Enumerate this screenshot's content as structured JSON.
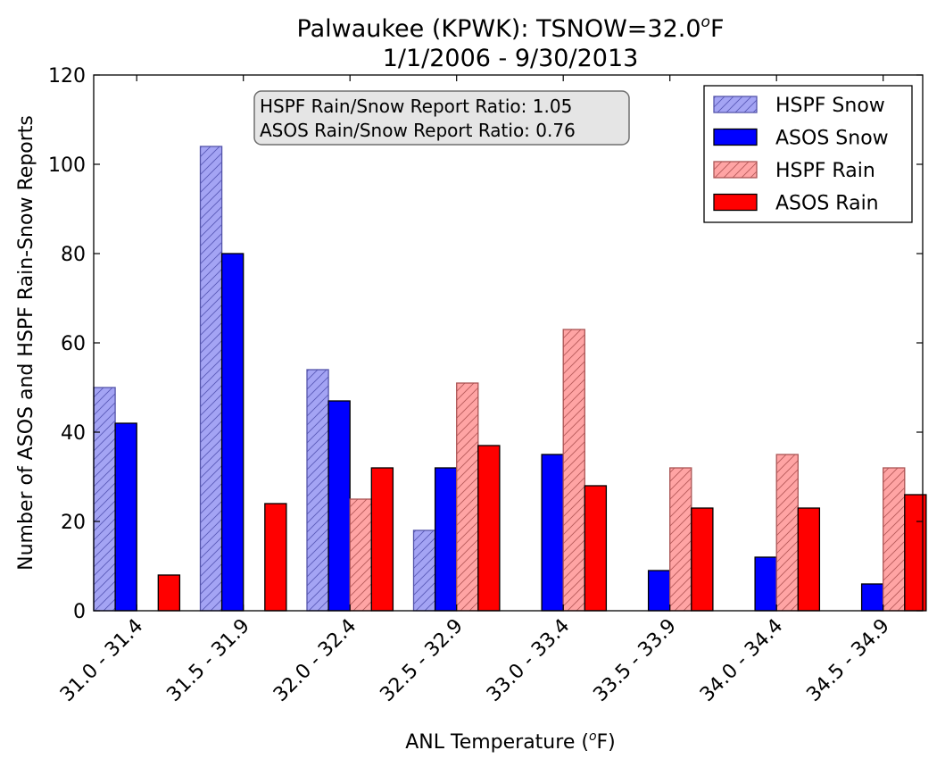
{
  "chart_data": {
    "type": "bar",
    "title_line1": "Palwaukee (KPWK): TSNOW=32.0",
    "title_degree": "o",
    "title_unit": "F",
    "title_line2": "1/1/2006 - 9/30/2013",
    "ylabel": "Number of ASOS and HSPF Rain-Snow Reports",
    "xlabel_prefix": "ANL Temperature (",
    "xlabel_degree": "o",
    "xlabel_suffix": "F)",
    "ylim": [
      0,
      120
    ],
    "yticks": [
      "0",
      "20",
      "40",
      "60",
      "80",
      "100",
      "120"
    ],
    "categories": [
      "31.0 - 31.4",
      "31.5 - 31.9",
      "32.0 - 32.4",
      "32.5 - 32.9",
      "33.0 - 33.4",
      "33.5 - 33.9",
      "34.0 - 34.4",
      "34.5 - 34.9"
    ],
    "series": [
      {
        "name": "HSPF Snow",
        "fill": "#a4a4f4",
        "stroke": "#5555aa",
        "hatch": "#5a5ab8",
        "values": [
          50,
          104,
          54,
          18,
          0,
          0,
          0,
          0
        ]
      },
      {
        "name": "ASOS Snow",
        "fill": "#0000ff",
        "stroke": "#000000",
        "hatch": null,
        "values": [
          42,
          80,
          47,
          32,
          35,
          9,
          12,
          6
        ]
      },
      {
        "name": "HSPF Rain",
        "fill": "#ffa4a4",
        "stroke": "#aa5555",
        "hatch": "#b85a5a",
        "values": [
          0,
          0,
          25,
          51,
          63,
          32,
          35,
          32
        ]
      },
      {
        "name": "ASOS Rain",
        "fill": "#ff0000",
        "stroke": "#000000",
        "hatch": null,
        "values": [
          8,
          24,
          32,
          37,
          28,
          23,
          23,
          26
        ]
      }
    ],
    "annotation": [
      "HSPF Rain/Snow Report Ratio: 1.05",
      "ASOS Rain/Snow Report Ratio: 0.76"
    ],
    "legend_position": "top-right",
    "grid": false
  }
}
